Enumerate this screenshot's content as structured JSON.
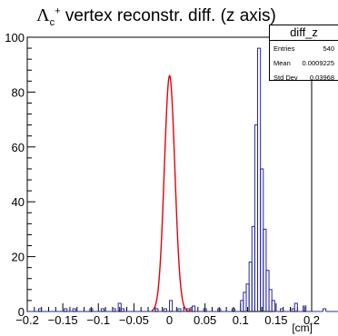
{
  "title": {
    "symbol": "Λ",
    "sub": "c",
    "sup": "+",
    "text": " vertex reconstr. diff. (z axis)"
  },
  "stats": {
    "name": "diff_z",
    "rows": [
      {
        "label": "Entries",
        "value": "540"
      },
      {
        "label": "Mean",
        "value": "0.0009225"
      },
      {
        "label": "Std Dev",
        "value": "0.03968"
      }
    ]
  },
  "colors": {
    "histogram": "#2727a0",
    "fit": "#e8000b",
    "axis": "#000000"
  },
  "chart_data": {
    "type": "histogram",
    "xlabel": "[cm]",
    "ylabel": "",
    "xlim": [
      -0.2,
      0.2
    ],
    "ylim": [
      0,
      100
    ],
    "x_ticks": [
      -0.2,
      -0.15,
      -0.1,
      -0.05,
      0,
      0.05,
      0.1,
      0.15,
      0.2
    ],
    "x_tick_labels": [
      "−0.2",
      "−0.15",
      "−0.1",
      "−0.05",
      "0",
      "0.05",
      "0.1",
      "0.15",
      "0.2"
    ],
    "y_ticks": [
      0,
      20,
      40,
      60,
      80,
      100
    ],
    "y_tick_labels": [
      "0",
      "20",
      "40",
      "60",
      "80",
      "100"
    ],
    "bin_edges_start": -0.2,
    "bin_width": 0.004,
    "counts": [
      0,
      0,
      0,
      0,
      1,
      0,
      0,
      0,
      0,
      0,
      0,
      0,
      0,
      1,
      0,
      0,
      1,
      0,
      0,
      0,
      0,
      0,
      1,
      0,
      0,
      0,
      1,
      0,
      0,
      0,
      1,
      0,
      3,
      1,
      0,
      0,
      0,
      0,
      0,
      0,
      0,
      0,
      0,
      0,
      0,
      1,
      0,
      0,
      1,
      0,
      4,
      0,
      0,
      1,
      0,
      0,
      1,
      0,
      2,
      0,
      0,
      0,
      1,
      0,
      0,
      0,
      0,
      1,
      0,
      0,
      0,
      0,
      1,
      0,
      0,
      4,
      7,
      10,
      18,
      31,
      68,
      96,
      52,
      30,
      15,
      8,
      4,
      0,
      0,
      1,
      0,
      0,
      0,
      1,
      3,
      0,
      0,
      2,
      0,
      0,
      0,
      0,
      0,
      0,
      1,
      0,
      0,
      0,
      0,
      0,
      1,
      0,
      0,
      0,
      0,
      0,
      1,
      0,
      3,
      0,
      0,
      0,
      0,
      0,
      0,
      0,
      0,
      0,
      0,
      0,
      0,
      0,
      0,
      0,
      0,
      0,
      0,
      0,
      0,
      0,
      0,
      0,
      0,
      0,
      0,
      0,
      0,
      0,
      0,
      0
    ],
    "fit": {
      "function": "gaussian",
      "amplitude": 86,
      "mean": 0.0002,
      "sigma": 0.0074,
      "range": [
        -0.025,
        0.03
      ]
    }
  }
}
